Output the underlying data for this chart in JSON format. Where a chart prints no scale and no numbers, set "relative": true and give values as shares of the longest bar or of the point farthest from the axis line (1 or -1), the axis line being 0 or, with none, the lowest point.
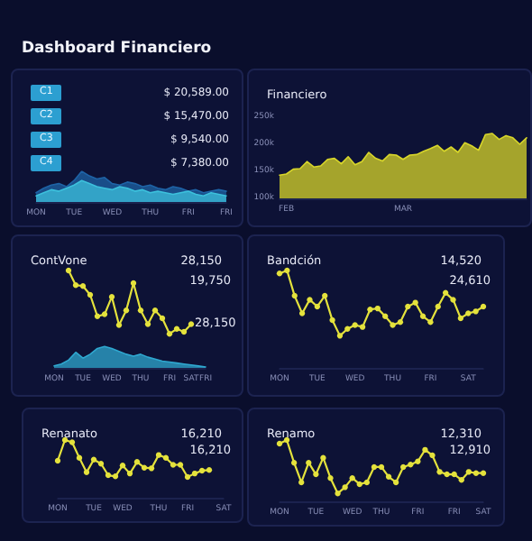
{
  "chart_data": [
    {
      "type": "other",
      "title": "Dashboard Financiero",
      "annotations": [
        "C1",
        "$ 20,589.00",
        "C2",
        "$ 15,470.00",
        "C3",
        "$ 9,540.00",
        "C4",
        "$ 7,380.00"
      ]
    },
    {
      "type": "area",
      "relative": true,
      "categories": [
        "MON",
        null,
        null,
        null,
        null,
        "TUE",
        null,
        null,
        null,
        null,
        "WED",
        null,
        null,
        null,
        null,
        "THU",
        null,
        null,
        null,
        null,
        "FRI",
        null,
        null,
        null,
        null,
        "FRI"
      ],
      "series": [
        {
          "color": "#1e63a6",
          "values": [
            0.3,
            0.45,
            0.55,
            0.6,
            0.5,
            0.7,
            1.0,
            0.85,
            0.75,
            0.8,
            0.6,
            0.55,
            0.65,
            0.6,
            0.5,
            0.55,
            0.45,
            0.4,
            0.5,
            0.45,
            0.35,
            0.4,
            0.3,
            0.35,
            0.4,
            0.35
          ]
        },
        {
          "color": "#3cc0dc",
          "values": [
            0.2,
            0.3,
            0.4,
            0.35,
            0.45,
            0.55,
            0.7,
            0.6,
            0.5,
            0.45,
            0.4,
            0.5,
            0.45,
            0.35,
            0.4,
            0.3,
            0.35,
            0.3,
            0.25,
            0.3,
            0.35,
            0.25,
            0.2,
            0.3,
            0.25,
            0.2
          ]
        }
      ]
    },
    {
      "type": "area",
      "title": "Financiero",
      "categories": [
        null,
        "FEB",
        null,
        null,
        null,
        null,
        null,
        null,
        null,
        null,
        null,
        null,
        null,
        null,
        null,
        null,
        null,
        null,
        "MAR",
        null,
        null,
        null,
        null,
        null,
        null,
        null,
        null,
        null,
        null,
        null,
        null,
        null,
        null,
        null,
        null,
        null,
        null
      ],
      "color": "#d8d62a",
      "values": [
        143,
        145,
        154,
        155,
        168,
        158,
        160,
        172,
        174,
        164,
        177,
        162,
        168,
        185,
        174,
        169,
        181,
        180,
        172,
        180,
        181,
        187,
        192,
        198,
        187,
        195,
        185,
        203,
        197,
        189,
        218,
        220,
        209,
        216,
        212,
        200,
        212
      ],
      "ylim": [
        100,
        250
      ],
      "yticks": [
        {
          "value": 100,
          "label": "100k"
        },
        {
          "value": 150,
          "label": "150k"
        },
        {
          "value": 200,
          "label": "200k"
        },
        {
          "value": 250,
          "label": "250k"
        }
      ]
    },
    {
      "type": "line",
      "title": "ContVone",
      "subtitle": "28,150",
      "relative": true,
      "annotations": [
        "19,750",
        "28,150"
      ],
      "categories": [
        "MON",
        null,
        null,
        null,
        "TUE",
        null,
        null,
        null,
        "WED",
        null,
        null,
        null,
        "THU",
        null,
        null,
        null,
        "FRI",
        null,
        null,
        "SAT",
        null,
        "FRI"
      ],
      "series": [
        {
          "type": "area",
          "color": "#2fa8d0",
          "values": [
            0.02,
            0.04,
            0.08,
            0.16,
            0.1,
            0.14,
            0.2,
            0.22,
            0.2,
            0.17,
            0.14,
            0.12,
            0.14,
            0.11,
            0.09,
            0.07,
            0.06,
            0.05,
            0.04,
            0.03,
            0.02,
            0.01
          ]
        },
        {
          "color": "#e4e23c",
          "marker": "circle",
          "values": [
            null,
            null,
            1,
            0.85,
            0.84,
            0.75,
            0.53,
            0.55,
            0.73,
            0.44,
            0.59,
            0.87,
            0.59,
            0.45,
            0.59,
            0.51,
            0.35,
            0.4,
            0.37,
            0.45,
            null,
            null
          ]
        }
      ]
    },
    {
      "type": "line",
      "title": "Bandción",
      "subtitle": "14,520",
      "relative": true,
      "marker": "circle",
      "annotations": [
        "24,610"
      ],
      "categories": [
        "MON",
        null,
        null,
        null,
        null,
        "TUE",
        null,
        null,
        null,
        null,
        "WED",
        null,
        null,
        null,
        null,
        "THU",
        null,
        null,
        null,
        null,
        "FRI",
        null,
        null,
        null,
        null,
        "SAT",
        null,
        null
      ],
      "color": "#e4e23c",
      "values": [
        0.97,
        1,
        0.74,
        0.56,
        0.7,
        0.63,
        0.74,
        0.49,
        0.33,
        0.4,
        0.44,
        0.42,
        0.6,
        0.61,
        0.53,
        0.44,
        0.47,
        0.63,
        0.67,
        0.53,
        0.47,
        0.63,
        0.77,
        0.7,
        0.51,
        0.56,
        0.58,
        0.63
      ]
    },
    {
      "type": "line",
      "title": "Renanato",
      "subtitle": "16,210",
      "relative": true,
      "marker": "circle",
      "annotations": [
        "16,210"
      ],
      "categories": [
        "MON",
        null,
        null,
        null,
        null,
        "TUE",
        null,
        null,
        null,
        "WED",
        null,
        null,
        null,
        null,
        "THU",
        null,
        null,
        null,
        "FRI",
        null,
        null,
        null,
        null,
        "SAT"
      ],
      "color": "#e4e23c",
      "values": [
        0.64,
        1,
        0.96,
        0.69,
        0.44,
        0.66,
        0.59,
        0.39,
        0.37,
        0.56,
        0.42,
        0.62,
        0.52,
        0.51,
        0.74,
        0.69,
        0.57,
        0.57,
        0.36,
        0.42,
        0.47,
        0.48,
        null,
        null
      ]
    },
    {
      "type": "line",
      "title": "Renamo",
      "subtitle": "12,310",
      "relative": true,
      "marker": "circle",
      "annotations": [
        "12,910"
      ],
      "categories": [
        "MON",
        null,
        null,
        null,
        null,
        "TUE",
        null,
        null,
        null,
        null,
        "WED",
        null,
        null,
        null,
        "THU",
        null,
        null,
        null,
        null,
        "FRI",
        null,
        null,
        null,
        null,
        "FRI",
        null,
        null,
        null,
        "SAT"
      ],
      "color": "#e4e23c",
      "values": [
        0.94,
        1,
        0.63,
        0.31,
        0.63,
        0.44,
        0.71,
        0.38,
        0.13,
        0.23,
        0.38,
        0.28,
        0.31,
        0.56,
        0.56,
        0.4,
        0.31,
        0.56,
        0.6,
        0.65,
        0.84,
        0.75,
        0.48,
        0.44,
        0.44,
        0.35,
        0.48,
        0.46,
        0.46
      ]
    }
  ]
}
